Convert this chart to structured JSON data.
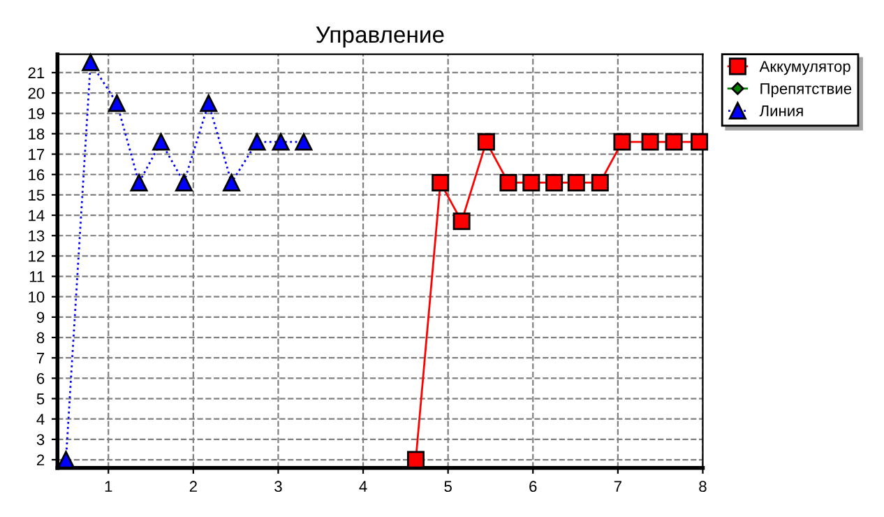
{
  "chart_data": {
    "type": "line",
    "title": "Управление",
    "xlim": [
      0.4,
      8
    ],
    "xticks": [
      1,
      2,
      3,
      4,
      5,
      6,
      7,
      8
    ],
    "ylim": [
      1.6,
      21.9
    ],
    "yticks": [
      2,
      3,
      4,
      5,
      6,
      7,
      8,
      9,
      10,
      11,
      12,
      13,
      14,
      15,
      16,
      17,
      18,
      19,
      20,
      21
    ],
    "grid": true,
    "legend": "top right",
    "series": [
      {
        "name": "Аккумулятор",
        "color": "#ff0000",
        "marker": "square",
        "line_style": "solid",
        "x": [
          4.62,
          4.91,
          5.16,
          5.45,
          5.71,
          5.98,
          6.25,
          6.51,
          6.79,
          7.05,
          7.38,
          7.66,
          7.96
        ],
        "values": [
          2,
          15.6,
          13.7,
          17.6,
          15.6,
          15.6,
          15.6,
          15.6,
          15.6,
          17.6,
          17.6,
          17.6,
          17.6
        ]
      },
      {
        "name": "Препятствие",
        "color": "#008000",
        "marker": "diamond",
        "line_style": "solid"
      },
      {
        "name": "Линия",
        "color": "#0000ff",
        "marker": "triangle",
        "line_style": "dotted",
        "x": [
          0.5,
          0.79,
          1.1,
          1.36,
          1.62,
          1.89,
          2.18,
          2.45,
          2.75,
          3.03,
          3.3
        ],
        "values": [
          2,
          21.5,
          19.5,
          15.6,
          17.6,
          15.6,
          19.5,
          15.6,
          17.6,
          17.6,
          17.6
        ]
      }
    ]
  }
}
